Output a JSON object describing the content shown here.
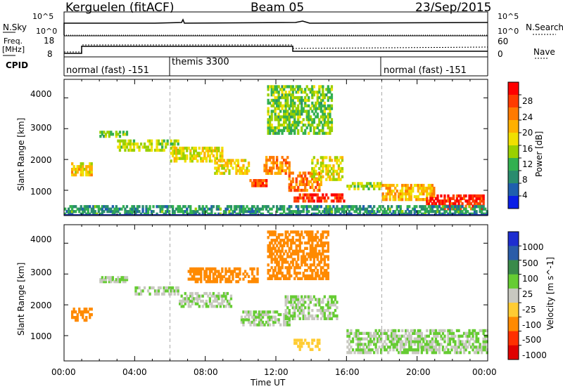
{
  "header": {
    "radar": "Kerguelen (fitACF)",
    "beam": "Beam 05",
    "date": "23/Sep/2015"
  },
  "top_panels": {
    "nsky_label": "N.Sky",
    "nsky_ticks": [
      "10^5",
      "10^0"
    ],
    "nsearch_label": "N.Search",
    "nsearch_ticks": [
      "10^5",
      "10^0"
    ],
    "freq_label_1": "Freq.",
    "freq_label_2": "[MHz]",
    "freq_ticks": [
      "18",
      "8"
    ],
    "nave_label": "Nave",
    "nave_ticks": [
      "60",
      "0"
    ],
    "cpid_label": "CPID",
    "cpid_segments": [
      "normal (fast) -151",
      "themis 3300",
      "normal (fast) -151"
    ]
  },
  "axes": {
    "xlabel": "Time UT",
    "x_ticks": [
      "00:00",
      "04:00",
      "08:00",
      "12:00",
      "16:00",
      "20:00",
      "00:00"
    ],
    "ylabel": "Slant Range [km]",
    "y_ticks": [
      "4000",
      "3000",
      "2000",
      "1000"
    ]
  },
  "colorbars": {
    "power_label": "Power [dB]",
    "power_ticks": [
      "28",
      "24",
      "20",
      "16",
      "12",
      "8",
      "4"
    ],
    "power_colors": [
      "#ff0000",
      "#ff3c00",
      "#ff7a00",
      "#ffb000",
      "#f0e000",
      "#9ad000",
      "#33b050",
      "#2a8c6e",
      "#1f5fae",
      "#0a1ee6"
    ],
    "velocity_label": "Velocity [m s^-1]",
    "velocity_ticks": [
      "1000",
      "500",
      "100",
      "25",
      "-25",
      "-100",
      "-500",
      "-1000"
    ],
    "velocity_colors": [
      "#1e2ed0",
      "#2a5ca8",
      "#3a8a4a",
      "#66cc33",
      "#c8c8c0",
      "#ffcc33",
      "#ff8a00",
      "#ff3000",
      "#e00000"
    ]
  },
  "chart_data": [
    {
      "type": "heatmap",
      "title": "Power",
      "xlabel": "Time UT",
      "ylabel": "Slant Range [km]",
      "xlim": [
        0,
        24
      ],
      "ylim": [
        180,
        4600
      ],
      "colorbar": "Power [dB]",
      "clim": [
        0,
        30
      ],
      "regions": [
        {
          "t0": 0.4,
          "t1": 1.6,
          "r0": 1450,
          "r1": 1900,
          "value": 18
        },
        {
          "t0": 2.0,
          "t1": 3.6,
          "r0": 2700,
          "r1": 2900,
          "value": 12
        },
        {
          "t0": 3.0,
          "t1": 6.5,
          "r0": 2250,
          "r1": 2650,
          "value": 14
        },
        {
          "t0": 6.0,
          "t1": 9.0,
          "r0": 1900,
          "r1": 2400,
          "value": 16
        },
        {
          "t0": 8.5,
          "t1": 10.5,
          "r0": 1500,
          "r1": 2000,
          "value": 18
        },
        {
          "t0": 10.5,
          "t1": 11.5,
          "r0": 1100,
          "r1": 1350,
          "value": 26
        },
        {
          "t0": 11.3,
          "t1": 12.8,
          "r0": 1500,
          "r1": 2100,
          "value": 22
        },
        {
          "t0": 12.7,
          "t1": 14.6,
          "r0": 950,
          "r1": 1600,
          "value": 24
        },
        {
          "t0": 13.0,
          "t1": 16.0,
          "r0": 600,
          "r1": 900,
          "value": 28
        },
        {
          "t0": 14.0,
          "t1": 15.8,
          "r0": 1300,
          "r1": 2100,
          "value": 16
        },
        {
          "t0": 16.0,
          "t1": 18.0,
          "r0": 1000,
          "r1": 1250,
          "value": 14
        },
        {
          "t0": 18.0,
          "t1": 21.0,
          "r0": 650,
          "r1": 1200,
          "value": 20
        },
        {
          "t0": 20.5,
          "t1": 23.8,
          "r0": 350,
          "r1": 850,
          "value": 28
        },
        {
          "t0": 11.5,
          "t1": 15.2,
          "r0": 2800,
          "r1": 4400,
          "value": 12
        },
        {
          "t0": 0.0,
          "t1": 24.0,
          "r0": 180,
          "r1": 500,
          "value": 8
        }
      ]
    },
    {
      "type": "heatmap",
      "title": "Velocity",
      "xlabel": "Time UT",
      "ylabel": "Slant Range [km]",
      "xlim": [
        0,
        24
      ],
      "ylim": [
        180,
        4600
      ],
      "colorbar": "Velocity [m s^-1]",
      "clim": [
        -1000,
        1000
      ],
      "regions": [
        {
          "t0": 0.4,
          "t1": 1.6,
          "r0": 1450,
          "r1": 1900,
          "value": -300
        },
        {
          "t0": 2.0,
          "t1": 3.6,
          "r0": 2700,
          "r1": 2900,
          "value": 0
        },
        {
          "t0": 4.0,
          "t1": 6.5,
          "r0": 2300,
          "r1": 2600,
          "value": 0
        },
        {
          "t0": 6.5,
          "t1": 9.5,
          "r0": 1900,
          "r1": 2400,
          "value": 0
        },
        {
          "t0": 7.0,
          "t1": 11.0,
          "r0": 2700,
          "r1": 3200,
          "value": -300
        },
        {
          "t0": 10.0,
          "t1": 12.8,
          "r0": 1300,
          "r1": 1800,
          "value": 0
        },
        {
          "t0": 12.5,
          "t1": 15.5,
          "r0": 1500,
          "r1": 2300,
          "value": 0
        },
        {
          "t0": 13.0,
          "t1": 14.5,
          "r0": 500,
          "r1": 900,
          "value": -60
        },
        {
          "t0": 16.0,
          "t1": 24.0,
          "r0": 400,
          "r1": 1200,
          "value": 0
        },
        {
          "t0": 11.5,
          "t1": 15.0,
          "r0": 2800,
          "r1": 4400,
          "value": -200
        }
      ]
    }
  ]
}
